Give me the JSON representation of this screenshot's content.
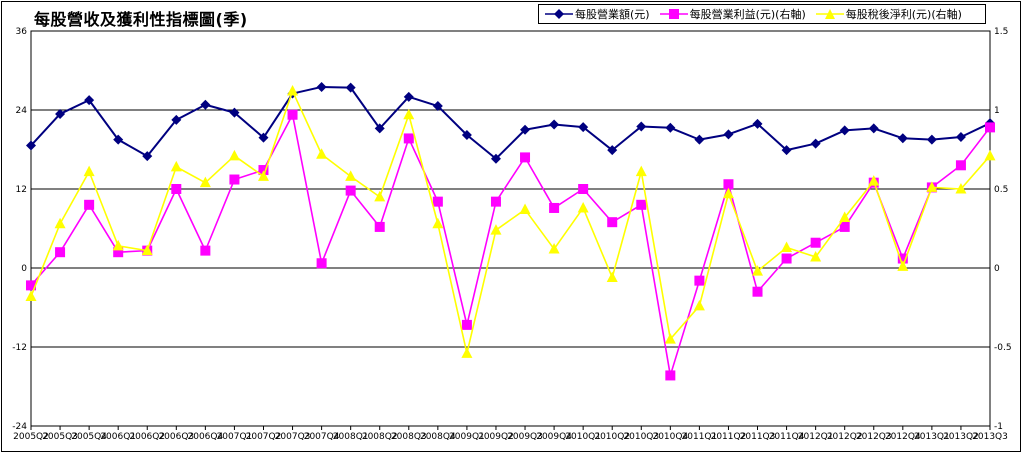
{
  "chart_data": {
    "type": "line",
    "title": "每股營收及獲利性指標圖(季)",
    "categories": [
      "2005Q2",
      "2005Q3",
      "2005Q4",
      "2006Q1",
      "2006Q2",
      "2006Q3",
      "2006Q4",
      "2007Q1",
      "2007Q2",
      "2007Q3",
      "2007Q4",
      "2008Q1",
      "2008Q2",
      "2008Q3",
      "2008Q4",
      "2009Q1",
      "2009Q2",
      "2009Q3",
      "2009Q4",
      "2010Q1",
      "2010Q2",
      "2010Q3",
      "2010Q4",
      "2011Q1",
      "2011Q2",
      "2011Q3",
      "2011Q4",
      "2012Q1",
      "2012Q2",
      "2012Q3",
      "2012Q4",
      "2013Q1",
      "2013Q2",
      "2013Q3"
    ],
    "ylim_left": [
      -24,
      36
    ],
    "yticks_left": [
      -24,
      -12,
      0,
      12,
      24,
      36
    ],
    "ylim_right": [
      -1,
      1.5
    ],
    "yticks_right": [
      -1,
      -0.5,
      0,
      0.5,
      1,
      1.5
    ],
    "series": [
      {
        "name": "每股營業額(元)",
        "axis": "left",
        "color": "#000080",
        "marker": "diamond",
        "values": [
          18.6,
          23.4,
          25.5,
          19.5,
          17.0,
          22.5,
          24.8,
          23.6,
          19.8,
          26.5,
          27.5,
          27.4,
          21.2,
          26.0,
          24.6,
          20.2,
          16.6,
          21.0,
          21.8,
          21.4,
          17.9,
          21.5,
          21.3,
          19.5,
          20.3,
          21.9,
          17.9,
          18.9,
          20.9,
          21.2,
          19.7,
          19.5,
          19.9,
          22.0
        ]
      },
      {
        "name": "每股營業利益(元)(右軸)",
        "axis": "right",
        "color": "#ff00ff",
        "marker": "square",
        "values": [
          -0.11,
          0.1,
          0.4,
          0.1,
          0.11,
          0.5,
          0.11,
          0.56,
          0.62,
          0.97,
          0.03,
          0.49,
          0.26,
          0.82,
          0.42,
          -0.36,
          0.42,
          0.7,
          0.38,
          0.5,
          0.29,
          0.4,
          -0.68,
          -0.08,
          0.53,
          -0.15,
          0.06,
          0.16,
          0.26,
          0.54,
          0.06,
          0.51,
          0.65,
          0.89
        ]
      },
      {
        "name": "每股稅後淨利(元)(右軸)",
        "axis": "right",
        "color": "#ffff00",
        "marker": "triangle",
        "values": [
          -0.18,
          0.28,
          0.61,
          0.14,
          0.11,
          0.64,
          0.54,
          0.71,
          0.58,
          1.12,
          0.72,
          0.58,
          0.45,
          0.97,
          0.28,
          -0.54,
          0.24,
          0.37,
          0.12,
          0.38,
          -0.06,
          0.61,
          -0.45,
          -0.24,
          0.47,
          -0.02,
          0.13,
          0.07,
          0.32,
          0.55,
          0.01,
          0.51,
          0.5,
          0.71
        ]
      }
    ],
    "grid": "horizontal"
  },
  "legend": {
    "items": [
      {
        "label": "每股營業額(元)",
        "marker": "diamond",
        "color": "#000080"
      },
      {
        "label": "每股營業利益(元)(右軸)",
        "marker": "square",
        "color": "#ff00ff"
      },
      {
        "label": "每股稅後淨利(元)(右軸)",
        "marker": "triangle",
        "color": "#ffff00"
      }
    ]
  }
}
